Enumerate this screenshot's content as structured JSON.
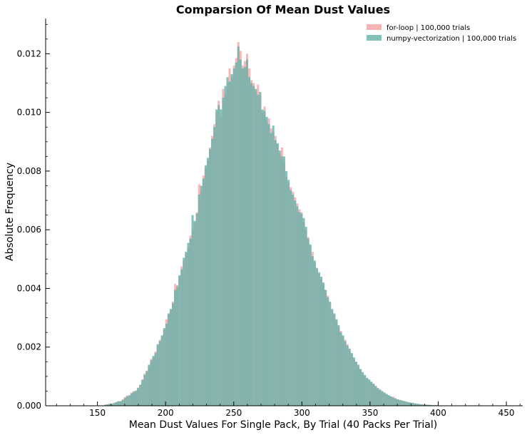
{
  "chart_data": {
    "type": "histogram",
    "title": "Comparsion Of Mean Dust Values",
    "xlabel": "Mean Dust Values For Single Pack, By Trial (40 Packs Per Trial)",
    "ylabel": "Absolute Frequency",
    "xlim": [
      112,
      462
    ],
    "ylim": [
      0,
      0.0132
    ],
    "x_ticks": [
      150,
      200,
      250,
      300,
      350,
      400,
      450
    ],
    "x_tick_labels": [
      "150",
      "200",
      "250",
      "300",
      "350",
      "400",
      "450"
    ],
    "y_ticks": [
      0.0,
      0.002,
      0.004,
      0.006,
      0.008,
      0.01,
      0.012
    ],
    "y_tick_labels": [
      "0.000",
      "0.002",
      "0.004",
      "0.006",
      "0.008",
      "0.010",
      "0.012"
    ],
    "legend_position": "top-right",
    "bin_width": 1.6,
    "bins_start": 155,
    "series": [
      {
        "name": "for-loop | 100,000 trials",
        "color": "#f4a0a0",
        "values": [
          4e-05,
          5e-05,
          8e-05,
          6e-05,
          0.0001,
          0.00012,
          0.00016,
          0.00014,
          0.00022,
          0.0003,
          0.00035,
          0.00033,
          0.00045,
          0.0005,
          0.00048,
          0.00062,
          0.0007,
          0.0009,
          0.0011,
          0.0012,
          0.00135,
          0.0016,
          0.00165,
          0.00185,
          0.00205,
          0.00225,
          0.00235,
          0.0026,
          0.00295,
          0.0031,
          0.00325,
          0.00355,
          0.00415,
          0.004,
          0.0044,
          0.00475,
          0.00495,
          0.0052,
          0.0054,
          0.0058,
          0.006,
          0.00625,
          0.0066,
          0.00755,
          0.00735,
          0.00785,
          0.0081,
          0.00835,
          0.0088,
          0.0092,
          0.0096,
          0.01,
          0.0104,
          0.00985,
          0.0108,
          0.0106,
          0.011,
          0.0115,
          0.0112,
          0.0116,
          0.01185,
          0.0124,
          0.0121,
          0.0116,
          0.01175,
          0.012,
          0.0115,
          0.0111,
          0.011,
          0.0107,
          0.01095,
          0.0106,
          0.01,
          0.0102,
          0.0097,
          0.0098,
          0.00945,
          0.00935,
          0.0092,
          0.0089,
          0.0086,
          0.0088,
          0.0083,
          0.0078,
          0.0076,
          0.00745,
          0.0073,
          0.0071,
          0.0069,
          0.0067,
          0.0066,
          0.00625,
          0.006,
          0.00575,
          0.00545,
          0.00525,
          0.0049,
          0.00465,
          0.0045,
          0.0043,
          0.00415,
          0.00395,
          0.00375,
          0.0035,
          0.00325,
          0.0031,
          0.0029,
          0.0027,
          0.00255,
          0.00235,
          0.00225,
          0.0021,
          0.0019,
          0.00175,
          0.0016,
          0.0015,
          0.00135,
          0.00125,
          0.0011,
          0.001,
          0.00095,
          0.00085,
          0.0008,
          0.00075,
          0.00065,
          0.0006,
          0.00055,
          0.0005,
          0.00045,
          0.0004,
          0.00035,
          0.00032,
          0.0003,
          0.00026,
          0.00022,
          0.0002,
          0.00018,
          0.00016,
          0.00014,
          0.00012,
          0.0001,
          9e-05,
          8e-05,
          7e-05,
          6e-05,
          5e-05,
          5e-05,
          4e-05,
          3e-05,
          3e-05,
          2e-05,
          2e-05,
          2e-05,
          1e-05,
          1e-05,
          1e-05,
          1e-05
        ]
      },
      {
        "name": "numpy-vectorization | 100,000 trials",
        "color": "#66b2aa",
        "values": [
          3e-05,
          5e-05,
          6e-05,
          7e-05,
          9e-05,
          0.00013,
          0.00015,
          0.00016,
          0.0002,
          0.00027,
          0.00032,
          0.00036,
          0.00042,
          0.00047,
          0.00052,
          0.0006,
          0.00072,
          0.00088,
          0.00105,
          0.00118,
          0.0014,
          0.00155,
          0.0017,
          0.0018,
          0.0021,
          0.0022,
          0.0024,
          0.00265,
          0.0028,
          0.00315,
          0.0033,
          0.0035,
          0.00395,
          0.0041,
          0.00445,
          0.00465,
          0.00505,
          0.00525,
          0.00555,
          0.0057,
          0.0065,
          0.0063,
          0.00655,
          0.0072,
          0.0075,
          0.00775,
          0.0082,
          0.00845,
          0.00875,
          0.0091,
          0.0095,
          0.0101,
          0.01025,
          0.0101,
          0.0105,
          0.0109,
          0.0112,
          0.01105,
          0.0113,
          0.0115,
          0.0117,
          0.01225,
          0.0118,
          0.0115,
          0.01155,
          0.0118,
          0.0112,
          0.011,
          0.0109,
          0.0108,
          0.0106,
          0.0107,
          0.0101,
          0.01005,
          0.00985,
          0.0096,
          0.0093,
          0.00955,
          0.00905,
          0.00895,
          0.0087,
          0.0085,
          0.0085,
          0.008,
          0.0077,
          0.00735,
          0.0072,
          0.007,
          0.0068,
          0.0066,
          0.00655,
          0.0064,
          0.0061,
          0.0057,
          0.0055,
          0.0051,
          0.00495,
          0.0047,
          0.00455,
          0.0044,
          0.0042,
          0.00395,
          0.0037,
          0.00355,
          0.0033,
          0.00315,
          0.00295,
          0.00275,
          0.0025,
          0.0024,
          0.0022,
          0.00205,
          0.00195,
          0.0018,
          0.00165,
          0.0015,
          0.0014,
          0.00125,
          0.00115,
          0.00105,
          0.00095,
          0.0009,
          0.00082,
          0.00075,
          0.00068,
          0.0006,
          0.00055,
          0.0005,
          0.00045,
          0.0004,
          0.00036,
          0.00032,
          0.00028,
          0.00025,
          0.00022,
          0.0002,
          0.00018,
          0.00016,
          0.00014,
          0.00012,
          0.00011,
          0.0001,
          8e-05,
          7e-05,
          6e-05,
          5e-05,
          4e-05,
          4e-05,
          3e-05,
          3e-05,
          2e-05,
          2e-05,
          2e-05,
          1e-05,
          1e-05,
          1e-05,
          1e-05
        ]
      }
    ]
  }
}
